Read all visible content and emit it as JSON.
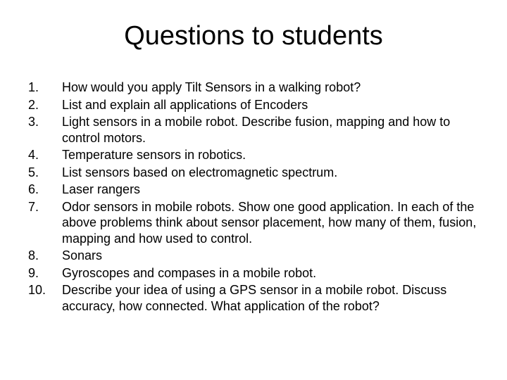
{
  "title": "Questions to students",
  "title_fontsize": 38,
  "body_fontsize": 18,
  "text_color": "#000000",
  "background_color": "#ffffff",
  "font_family": "Arial",
  "items": [
    {
      "num": "1.",
      "text": "How would you apply Tilt Sensors in a walking robot?"
    },
    {
      "num": "2.",
      "text": "List and explain all applications of Encoders"
    },
    {
      "num": "3.",
      "text": "Light sensors in a mobile robot. Describe fusion, mapping and how to control motors."
    },
    {
      "num": "4.",
      "text": "Temperature sensors in robotics."
    },
    {
      "num": "5.",
      "text": "List sensors based on electromagnetic spectrum."
    },
    {
      "num": "6.",
      "text": "Laser rangers"
    },
    {
      "num": "7.",
      "text": "Odor sensors in mobile robots. Show one good application. In each of the above problems think about sensor placement, how many of them, fusion, mapping and how used to control."
    },
    {
      "num": "8.",
      "text": "Sonars"
    },
    {
      "num": "9.",
      "text": "Gyroscopes and compases in a mobile robot."
    },
    {
      "num": "10.",
      "text": "Describe your idea of using a GPS sensor in a mobile robot. Discuss accuracy, how connected. What application of the robot?"
    }
  ]
}
